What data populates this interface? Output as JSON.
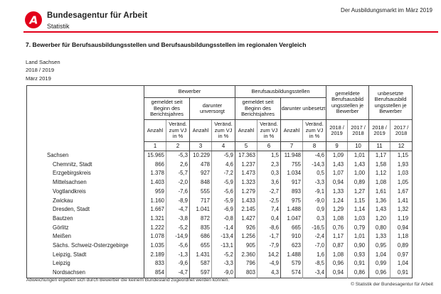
{
  "brand_color": "#e2001a",
  "header": {
    "brand": "Bundesagentur für Arbeit",
    "division": "Statistik",
    "market_label": "Der Ausbildungsmarkt im März 2019"
  },
  "document": {
    "section_title": "7. Bewerber für Berufsausbildungsstellen und Berufsausbildungsstellen im regionalen Vergleich",
    "scope": "Land Sachsen",
    "period": "2018 / 2019",
    "month": "März 2019",
    "footnote": "Abweichungen ergeben sich durch Bewerber die keinem Bundesland zugeordnet werden können.",
    "copyright": "© Statistik der Bundesagentur für Arbeit"
  },
  "table": {
    "group_headers": {
      "bewerber": "Bewerber",
      "stellen": "Berufsausbildungsstellen",
      "gemeldete_je_bewerber": "gemeldete Berufsausbild ungsstellen je Bewerber",
      "unbesetzte_je_bewerber": "unbesetzte Berufsausbild ungsstellen je Bewerber"
    },
    "sub_headers": [
      "gemeldet seit Beginn des Berichtsjahres",
      "darunter unversorgt",
      "gemeldet seit Beginn des Berichtsjahres",
      "darunter unbesetzt"
    ],
    "col_headers": [
      "Anzahl",
      "Veränd. zum VJ in %",
      "Anzahl",
      "Veränd. zum VJ in %",
      "Anzahl",
      "Veränd. zum VJ in %",
      "Anzahl",
      "Veränd. zum VJ in %",
      "2018 / 2019",
      "2017 / 2018",
      "2018 / 2019",
      "2017 / 2018"
    ],
    "col_numbers": [
      "1",
      "2",
      "3",
      "4",
      "5",
      "6",
      "7",
      "8",
      "9",
      "10",
      "11",
      "12"
    ],
    "rows": [
      {
        "name": "Sachsen",
        "indent": false,
        "values": [
          "15.965",
          "-5,3",
          "10.229",
          "-5,9",
          "17.363",
          "1,5",
          "11.948",
          "-4,6",
          "1,09",
          "1,01",
          "1,17",
          "1,15"
        ]
      },
      {
        "name": "Chemnitz, Stadt",
        "indent": true,
        "values": [
          "866",
          "2,6",
          "478",
          "4,6",
          "1.237",
          "2,3",
          "755",
          "-14,3",
          "1,43",
          "1,43",
          "1,58",
          "1,93"
        ]
      },
      {
        "name": "Erzgebirgskreis",
        "indent": true,
        "values": [
          "1.378",
          "-5,7",
          "927",
          "-7,2",
          "1.473",
          "0,3",
          "1.034",
          "0,5",
          "1,07",
          "1,00",
          "1,12",
          "1,03"
        ]
      },
      {
        "name": "Mittelsachsen",
        "indent": true,
        "values": [
          "1.403",
          "-2,0",
          "848",
          "-5,9",
          "1.323",
          "3,6",
          "917",
          "-3,3",
          "0,94",
          "0,89",
          "1,08",
          "1,05"
        ]
      },
      {
        "name": "Vogtlandkreis",
        "indent": true,
        "values": [
          "959",
          "-7,6",
          "555",
          "-5,6",
          "1.279",
          "-2,7",
          "893",
          "-9,1",
          "1,33",
          "1,27",
          "1,61",
          "1,67"
        ]
      },
      {
        "name": "Zwickau",
        "indent": true,
        "values": [
          "1.160",
          "-8,9",
          "717",
          "-5,9",
          "1.433",
          "-2,5",
          "975",
          "-9,0",
          "1,24",
          "1,15",
          "1,36",
          "1,41"
        ]
      },
      {
        "name": "Dresden, Stadt",
        "indent": true,
        "values": [
          "1.667",
          "-4,7",
          "1.041",
          "-6,9",
          "2.145",
          "7,4",
          "1.488",
          "0,9",
          "1,29",
          "1,14",
          "1,43",
          "1,32"
        ]
      },
      {
        "name": "Bautzen",
        "indent": true,
        "values": [
          "1.321",
          "-3,8",
          "872",
          "-0,8",
          "1.427",
          "0,4",
          "1.047",
          "0,3",
          "1,08",
          "1,03",
          "1,20",
          "1,19"
        ]
      },
      {
        "name": "Görlitz",
        "indent": true,
        "values": [
          "1.222",
          "-5,2",
          "835",
          "-1,4",
          "926",
          "-8,6",
          "665",
          "-16,5",
          "0,76",
          "0,79",
          "0,80",
          "0,94"
        ]
      },
      {
        "name": "Meißen",
        "indent": true,
        "values": [
          "1.078",
          "-14,9",
          "686",
          "-13,4",
          "1.256",
          "-1,7",
          "910",
          "-2,4",
          "1,17",
          "1,01",
          "1,33",
          "1,18"
        ]
      },
      {
        "name": "Sächs. Schweiz-Osterzgebirge",
        "indent": true,
        "values": [
          "1.035",
          "-5,6",
          "655",
          "-13,1",
          "905",
          "-7,9",
          "623",
          "-7,0",
          "0,87",
          "0,90",
          "0,95",
          "0,89"
        ]
      },
      {
        "name": "Leipzig, Stadt",
        "indent": true,
        "values": [
          "2.189",
          "-1,3",
          "1.431",
          "-5,2",
          "2.360",
          "14,2",
          "1.488",
          "1,6",
          "1,08",
          "0,93",
          "1,04",
          "0,97"
        ]
      },
      {
        "name": "Leipzig",
        "indent": true,
        "values": [
          "833",
          "-9,6",
          "587",
          "-3,3",
          "796",
          "-4,9",
          "579",
          "-8,5",
          "0,96",
          "0,91",
          "0,99",
          "1,04"
        ]
      },
      {
        "name": "Nordsachsen",
        "indent": true,
        "values": [
          "854",
          "-4,7",
          "597",
          "-9,0",
          "803",
          "4,3",
          "574",
          "-3,4",
          "0,94",
          "0,86",
          "0,96",
          "0,91"
        ]
      }
    ]
  }
}
